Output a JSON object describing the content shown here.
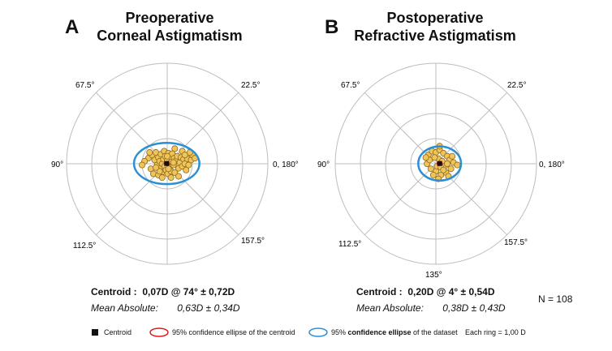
{
  "chart_data": [
    {
      "type": "scatter",
      "panel_label": "A",
      "title_line1": "Preoperative",
      "title_line2": "Corneal Astigmatism",
      "polar_axis_labels": {
        "deg0": "0, 180°",
        "deg22": "22.5°",
        "deg67": "67.5°",
        "deg90": "90°",
        "deg112": "112.5°",
        "deg157": "157.5°",
        "deg135": ""
      },
      "rings": 4,
      "ring_unit_D": 1.0,
      "centroid": {
        "x": -0.02,
        "y": 0.01
      },
      "ellipse95_dataset": {
        "rx": 1.3,
        "ry": 0.82
      },
      "ellipse95_centroid": {
        "rx": 0.09,
        "ry": 0.06
      },
      "points": [
        [
          -0.75,
          0.22
        ],
        [
          -0.6,
          0.35
        ],
        [
          -0.5,
          0.15
        ],
        [
          -0.45,
          0.45
        ],
        [
          -0.4,
          -0.05
        ],
        [
          -0.35,
          0.25
        ],
        [
          -0.3,
          0.1
        ],
        [
          -0.28,
          -0.2
        ],
        [
          -0.25,
          0.38
        ],
        [
          -0.2,
          0.0
        ],
        [
          -0.18,
          -0.32
        ],
        [
          -0.15,
          0.18
        ],
        [
          -0.12,
          0.5
        ],
        [
          -0.1,
          -0.1
        ],
        [
          -0.08,
          0.3
        ],
        [
          -0.05,
          -0.25
        ],
        [
          0.0,
          0.12
        ],
        [
          0.02,
          -0.4
        ],
        [
          0.05,
          0.42
        ],
        [
          0.08,
          0.0
        ],
        [
          0.1,
          -0.15
        ],
        [
          0.12,
          0.28
        ],
        [
          0.15,
          -0.3
        ],
        [
          0.18,
          0.08
        ],
        [
          0.2,
          0.4
        ],
        [
          0.25,
          -0.05
        ],
        [
          0.28,
          0.22
        ],
        [
          0.3,
          -0.35
        ],
        [
          0.35,
          0.12
        ],
        [
          0.4,
          0.3
        ],
        [
          0.45,
          -0.18
        ],
        [
          0.5,
          0.05
        ],
        [
          0.55,
          0.25
        ],
        [
          0.6,
          -0.1
        ],
        [
          0.65,
          0.18
        ],
        [
          0.7,
          0.0
        ],
        [
          0.75,
          -0.25
        ],
        [
          0.8,
          0.2
        ],
        [
          0.85,
          -0.05
        ],
        [
          0.95,
          0.15
        ],
        [
          1.0,
          0.35
        ],
        [
          1.1,
          0.22
        ],
        [
          -0.9,
          0.1
        ],
        [
          -1.0,
          -0.05
        ],
        [
          -0.65,
          -0.2
        ],
        [
          -0.55,
          -0.4
        ],
        [
          -0.35,
          -0.45
        ],
        [
          0.3,
          0.6
        ],
        [
          0.6,
          0.5
        ],
        [
          0.9,
          0.45
        ],
        [
          -0.2,
          -0.55
        ],
        [
          0.15,
          -0.55
        ],
        [
          0.45,
          -0.5
        ],
        [
          -0.7,
          0.45
        ],
        [
          0.0,
          0.3
        ],
        [
          0.05,
          -0.2
        ],
        [
          -0.3,
          -0.3
        ],
        [
          0.25,
          0.05
        ],
        [
          0.7,
          0.35
        ],
        [
          -0.45,
          -0.15
        ]
      ],
      "centroid_label": "Centroid :",
      "centroid_value": "0,07D @ 74°   ±  0,72D",
      "mean_label": "Mean Absolute:",
      "mean_value": "0,63D  ± 0,34D"
    },
    {
      "type": "scatter",
      "panel_label": "B",
      "title_line1": "Postoperative",
      "title_line2": "Refractive Astigmatism",
      "polar_axis_labels": {
        "deg0": "0, 180°",
        "deg22": "22.5°",
        "deg67": "67.5°",
        "deg90": "90°",
        "deg112": "112.5°",
        "deg157": "157.5°",
        "deg135": "135°"
      },
      "rings": 4,
      "ring_unit_D": 1.0,
      "centroid": {
        "x": 0.15,
        "y": 0.01
      },
      "ellipse95_dataset": {
        "rx": 0.85,
        "ry": 0.68
      },
      "ellipse95_centroid": {
        "rx": 0.09,
        "ry": 0.07
      },
      "points": [
        [
          -0.3,
          0.35
        ],
        [
          -0.15,
          0.5
        ],
        [
          0.0,
          0.45
        ],
        [
          0.15,
          0.55
        ],
        [
          0.3,
          0.42
        ],
        [
          0.45,
          0.3
        ],
        [
          0.55,
          0.15
        ],
        [
          0.7,
          0.05
        ],
        [
          0.85,
          -0.05
        ],
        [
          0.6,
          -0.2
        ],
        [
          0.4,
          -0.35
        ],
        [
          0.2,
          -0.45
        ],
        [
          0.0,
          -0.3
        ],
        [
          -0.2,
          -0.2
        ],
        [
          -0.35,
          0.0
        ],
        [
          -0.25,
          0.15
        ],
        [
          0.1,
          0.2
        ],
        [
          0.25,
          0.1
        ],
        [
          0.35,
          -0.1
        ],
        [
          0.05,
          -0.1
        ],
        [
          -0.1,
          -0.45
        ],
        [
          0.5,
          -0.5
        ],
        [
          0.65,
          0.3
        ],
        [
          0.15,
          0.7
        ],
        [
          -0.05,
          0.25
        ],
        [
          0.2,
          -0.15
        ],
        [
          0.3,
          -0.25
        ],
        [
          -0.4,
          0.25
        ],
        [
          0.45,
          0.0
        ],
        [
          0.1,
          -0.6
        ]
      ],
      "centroid_label": "Centroid :",
      "centroid_value": "0,20D @  4°    ± 0,54D",
      "mean_label": "Mean Absolute:",
      "mean_value": "0,38D  ± 0,43D"
    }
  ],
  "n_label": "N =  108",
  "legend": {
    "centroid": "Centroid",
    "conf_centroid": "95% confidence ellipse of  the centroid",
    "conf_dataset_pre": "95% ",
    "conf_dataset_bold": "confidence ellipse",
    "conf_dataset_post": " of the dataset",
    "ring_text": "Each ring =    1,00   D"
  },
  "colors": {
    "point_fill": "#f0c45a",
    "point_stroke": "#8a6a1a",
    "dataset_ellipse": "#2a8fd4",
    "centroid_ellipse": "#e01a1a",
    "centroid_marker": "#111111",
    "grid": "#bdbdbd"
  }
}
